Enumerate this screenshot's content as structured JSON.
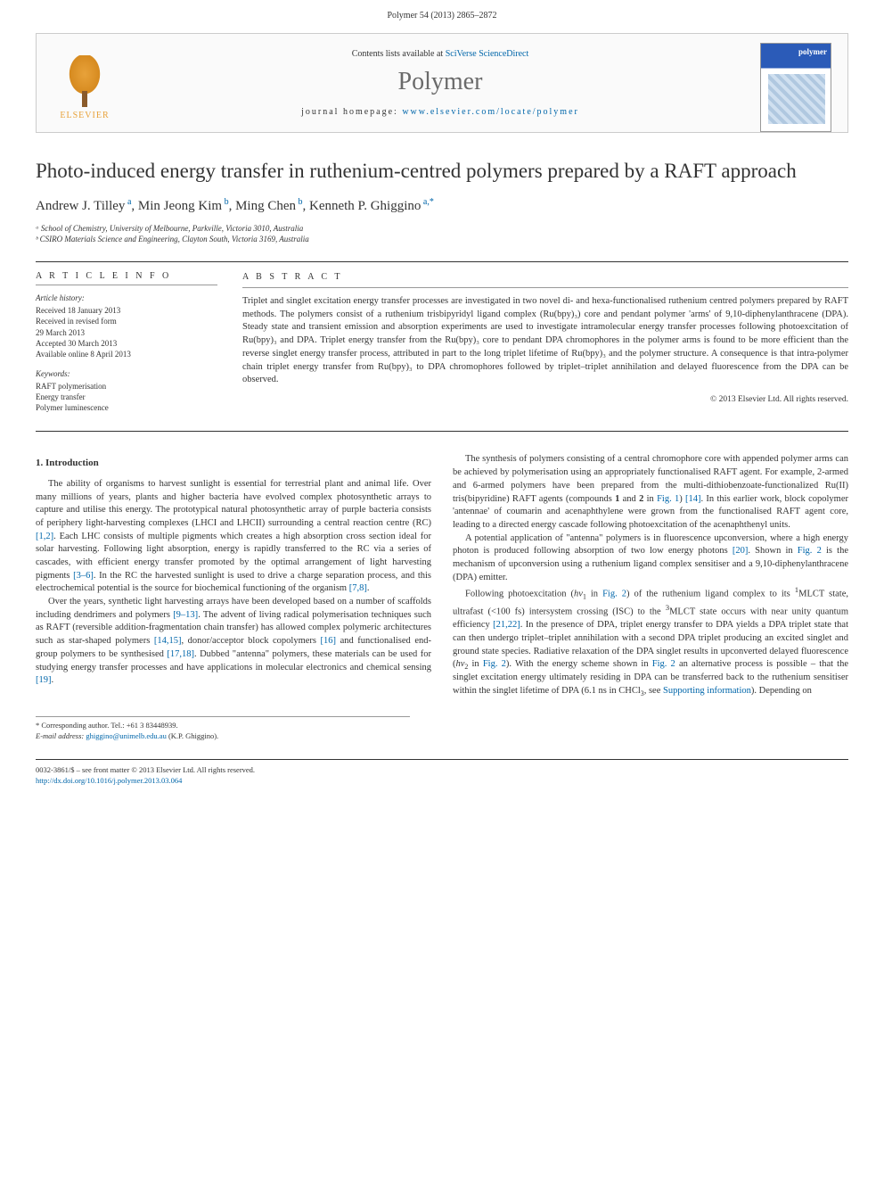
{
  "header": {
    "citation": "Polymer 54 (2013) 2865–2872"
  },
  "masthead": {
    "contents_prefix": "Contents lists available at ",
    "contents_link": "SciVerse ScienceDirect",
    "journal": "Polymer",
    "homepage_prefix": "journal homepage: ",
    "homepage_url": "www.elsevier.com/locate/polymer",
    "publisher": "ELSEVIER",
    "cover_label": "polymer"
  },
  "article": {
    "title": "Photo-induced energy transfer in ruthenium-centred polymers prepared by a RAFT approach",
    "authors_html": "Andrew J. Tilley ᵃ, Min Jeong Kim ᵇ, Ming Chen ᵇ, Kenneth P. Ghiggino ᵃ·*",
    "affiliations": [
      "ᵃ School of Chemistry, University of Melbourne, Parkville, Victoria 3010, Australia",
      "ᵇ CSIRO Materials Science and Engineering, Clayton South, Victoria 3169, Australia"
    ]
  },
  "info": {
    "heading": "A R T I C L E   I N F O",
    "history_label": "Article history:",
    "history": [
      "Received 18 January 2013",
      "Received in revised form",
      "29 March 2013",
      "Accepted 30 March 2013",
      "Available online 8 April 2013"
    ],
    "keywords_label": "Keywords:",
    "keywords": [
      "RAFT polymerisation",
      "Energy transfer",
      "Polymer luminescence"
    ]
  },
  "abstract": {
    "heading": "A B S T R A C T",
    "text": "Triplet and singlet excitation energy transfer processes are investigated in two novel di- and hexa-functionalised ruthenium centred polymers prepared by RAFT methods. The polymers consist of a ruthenium trisbipyridyl ligand complex (Ru(bpy)₃) core and pendant polymer 'arms' of 9,10-diphenylanthracene (DPA). Steady state and transient emission and absorption experiments are used to investigate intramolecular energy transfer processes following photoexcitation of Ru(bpy)₃ and DPA. Triplet energy transfer from the Ru(bpy)₃ core to pendant DPA chromophores in the polymer arms is found to be more efficient than the reverse singlet energy transfer process, attributed in part to the long triplet lifetime of Ru(bpy)₃ and the polymer structure. A consequence is that intra-polymer chain triplet energy transfer from Ru(bpy)₃ to DPA chromophores followed by triplet–triplet annihilation and delayed fluorescence from the DPA can be observed.",
    "copyright": "© 2013 Elsevier Ltd. All rights reserved."
  },
  "body": {
    "section1_heading": "1. Introduction",
    "p1": "The ability of organisms to harvest sunlight is essential for terrestrial plant and animal life. Over many millions of years, plants and higher bacteria have evolved complex photosynthetic arrays to capture and utilise this energy. The prototypical natural photosynthetic array of purple bacteria consists of periphery light-harvesting complexes (LHCI and LHCII) surrounding a central reaction centre (RC) [1,2]. Each LHC consists of multiple pigments which creates a high absorption cross section ideal for solar harvesting. Following light absorption, energy is rapidly transferred to the RC via a series of cascades, with efficient energy transfer promoted by the optimal arrangement of light harvesting pigments [3–6]. In the RC the harvested sunlight is used to drive a charge separation process, and this electrochemical potential is the source for biochemical functioning of the organism [7,8].",
    "p2": "Over the years, synthetic light harvesting arrays have been developed based on a number of scaffolds including dendrimers and polymers [9–13]. The advent of living radical polymerisation techniques such as RAFT (reversible addition-fragmentation chain transfer) has allowed complex polymeric architectures such as star-shaped polymers [14,15], donor/acceptor block copolymers [16] and functionalised end-group polymers to be synthesised [17,18]. Dubbed \"antenna\" polymers, these materials can be used for studying energy transfer processes and have applications in molecular electronics and chemical sensing [19].",
    "p3": "The synthesis of polymers consisting of a central chromophore core with appended polymer arms can be achieved by polymerisation using an appropriately functionalised RAFT agent. For example, 2-armed and 6-armed polymers have been prepared from the multi-dithiobenzoate-functionalized Ru(II) tris(bipyridine) RAFT agents (compounds 1 and 2 in Fig. 1) [14]. In this earlier work, block copolymer 'antennae' of coumarin and acenaphthylene were grown from the functionalised RAFT agent core, leading to a directed energy cascade following photoexcitation of the acenaphthenyl units.",
    "p4": "A potential application of \"antenna\" polymers is in fluorescence upconversion, where a high energy photon is produced following absorption of two low energy photons [20]. Shown in Fig. 2 is the mechanism of upconversion using a ruthenium ligand complex sensitiser and a 9,10-diphenylanthracene (DPA) emitter.",
    "p5": "Following photoexcitation (hν₁ in Fig. 2) of the ruthenium ligand complex to its ¹MLCT state, ultrafast (<100 fs) intersystem crossing (ISC) to the ³MLCT state occurs with near unity quantum efficiency [21,22]. In the presence of DPA, triplet energy transfer to DPA yields a DPA triplet state that can then undergo triplet–triplet annihilation with a second DPA triplet producing an excited singlet and ground state species. Radiative relaxation of the DPA singlet results in upconverted delayed fluorescence (hν₂ in Fig. 2). With the energy scheme shown in Fig. 2 an alternative process is possible – that the singlet excitation energy ultimately residing in DPA can be transferred back to the ruthenium sensitiser within the singlet lifetime of DPA (6.1 ns in CHCl₃, see Supporting information). Depending on"
  },
  "corr": {
    "label": "* Corresponding author. Tel.: +61 3 83448939.",
    "email_label": "E-mail address: ",
    "email": "ghiggino@unimelb.edu.au",
    "email_name": " (K.P. Ghiggino)."
  },
  "footer": {
    "issn_line": "0032-3861/$ – see front matter © 2013 Elsevier Ltd. All rights reserved.",
    "doi": "http://dx.doi.org/10.1016/j.polymer.2013.03.064"
  },
  "colors": {
    "link": "#0066aa",
    "text": "#333333",
    "rule": "#333333",
    "elsevier_orange": "#e8a23a",
    "cover_blue": "#2b5bb8"
  }
}
